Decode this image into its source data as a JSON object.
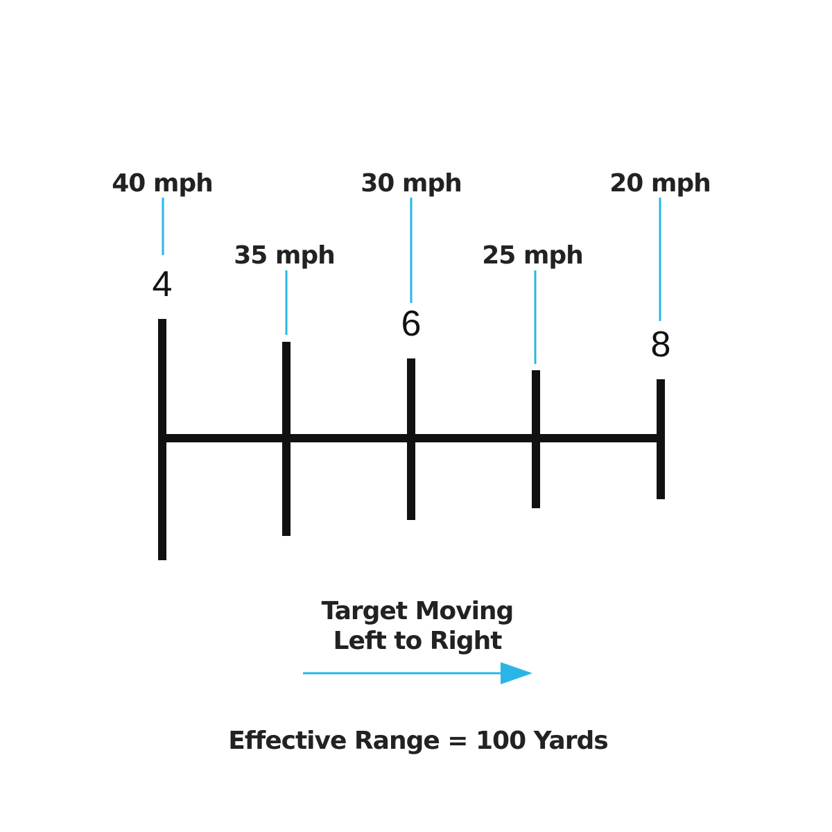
{
  "marks": [
    {
      "speed": "40 mph",
      "number": "4"
    },
    {
      "speed": "35 mph"
    },
    {
      "speed": "30 mph",
      "number": "6"
    },
    {
      "speed": "25 mph"
    },
    {
      "speed": "20 mph",
      "number": "8"
    }
  ],
  "direction": {
    "line1": "Target Moving",
    "line2": "Left to Right"
  },
  "footer": "Effective Range = 100 Yards"
}
